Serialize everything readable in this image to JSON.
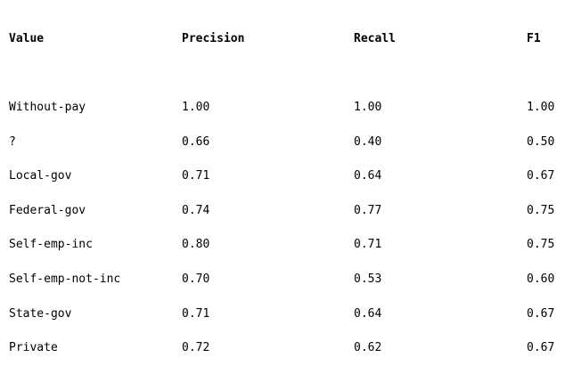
{
  "table": {
    "columns": [
      "Value",
      "Precision",
      "Recall",
      "F1"
    ],
    "rows": [
      [
        "Without-pay",
        "1.00",
        "1.00",
        "1.00"
      ],
      [
        "?",
        "0.66",
        "0.40",
        "0.50"
      ],
      [
        "Local-gov",
        "0.71",
        "0.64",
        "0.67"
      ],
      [
        "Federal-gov",
        "0.74",
        "0.77",
        "0.75"
      ],
      [
        "Self-emp-inc",
        "0.80",
        "0.71",
        "0.75"
      ],
      [
        "Self-emp-not-inc",
        "0.70",
        "0.53",
        "0.60"
      ],
      [
        "State-gov",
        "0.71",
        "0.64",
        "0.67"
      ],
      [
        "Private",
        "0.72",
        "0.62",
        "0.67"
      ]
    ]
  }
}
